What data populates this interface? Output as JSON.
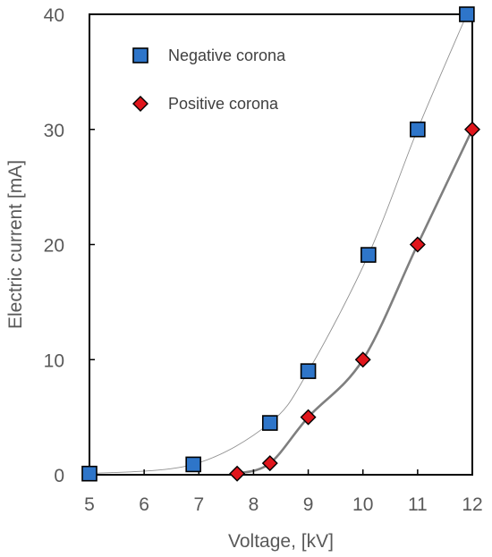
{
  "chart_data": {
    "type": "scatter",
    "title": "",
    "xlabel": "Voltage, [kV]",
    "ylabel": "Electric current [mA]",
    "xlim": [
      5,
      12
    ],
    "ylim": [
      0,
      40
    ],
    "xticks": [
      5,
      6,
      7,
      8,
      9,
      10,
      11,
      12
    ],
    "yticks": [
      0,
      10,
      20,
      30,
      40
    ],
    "grid": false,
    "legend_position": "top-left",
    "series": [
      {
        "name": "Negative corona",
        "marker": "square",
        "color": "#2E75C9",
        "points": [
          {
            "x": 5.0,
            "y": 0.1
          },
          {
            "x": 6.9,
            "y": 0.9
          },
          {
            "x": 8.3,
            "y": 4.5
          },
          {
            "x": 9.0,
            "y": 9.0
          },
          {
            "x": 10.1,
            "y": 19.1
          },
          {
            "x": 11.0,
            "y": 30.0
          },
          {
            "x": 11.9,
            "y": 40.0
          }
        ],
        "trend": {
          "color": "#909090"
        }
      },
      {
        "name": "Positive corona",
        "marker": "diamond",
        "color": "#E0161C",
        "points": [
          {
            "x": 7.7,
            "y": 0.1
          },
          {
            "x": 8.3,
            "y": 1.0
          },
          {
            "x": 9.0,
            "y": 5.0
          },
          {
            "x": 10.0,
            "y": 10.0
          },
          {
            "x": 11.0,
            "y": 20.0
          },
          {
            "x": 12.0,
            "y": 30.0
          }
        ],
        "trend": {
          "color": "#7F7F7F"
        }
      }
    ]
  }
}
